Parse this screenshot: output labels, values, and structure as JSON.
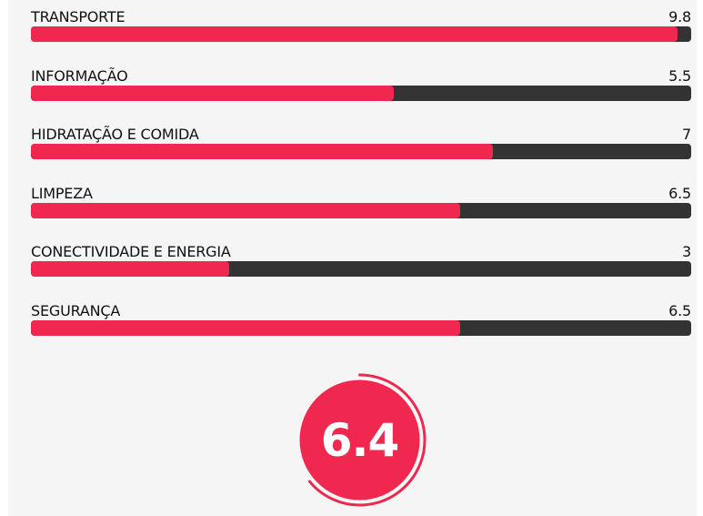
{
  "chart_data": {
    "type": "bar",
    "orientation": "horizontal",
    "categories": [
      "TRANSPORTE",
      "INFORMAÇÃO",
      "HIDRATAÇÃO E COMIDA",
      "LIMPEZA",
      "CONECTIVIDADE E ENERGIA",
      "SEGURANÇA"
    ],
    "value_labels": [
      "9.8",
      "5.5",
      "7",
      "6.5",
      "3",
      "6.5"
    ],
    "values": [
      9.8,
      5.5,
      7,
      6.5,
      3,
      6.5
    ],
    "xlim": [
      0,
      10
    ],
    "grid": false,
    "legend": "none"
  },
  "overall_score": {
    "label": "6.4",
    "value": 6.4,
    "max": 10
  },
  "colors": {
    "bar_fill": "#f0284f",
    "bar_track": "#333333",
    "score_circle": "#f0284f",
    "score_ring": "#f0284f",
    "score_text": "#ffffff"
  }
}
